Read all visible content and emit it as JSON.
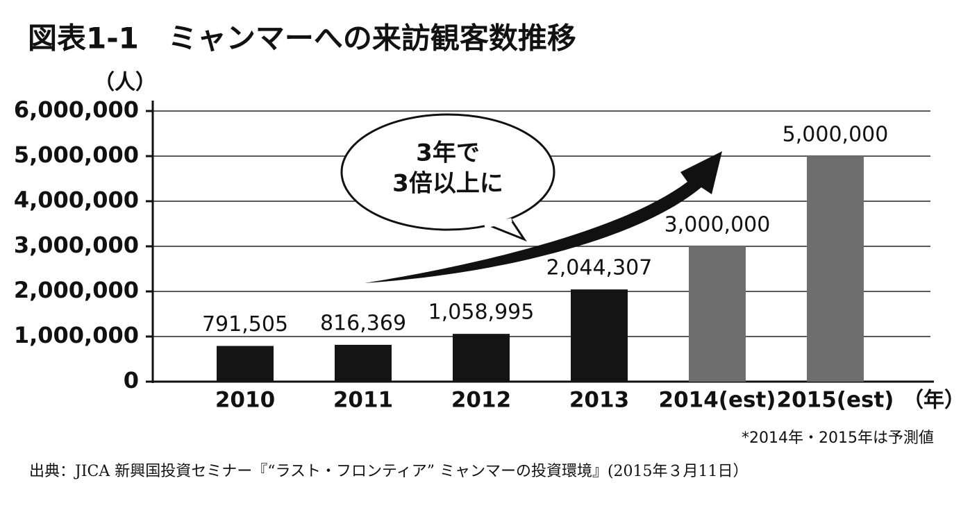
{
  "chart_data": {
    "type": "bar",
    "title": "図表1-1　ミャンマーへの来訪観客数推移",
    "y_unit": "（人）",
    "x_unit": "（年）",
    "categories": [
      "2010",
      "2011",
      "2012",
      "2013",
      "2014(est)",
      "2015(est)"
    ],
    "values": [
      791505,
      816369,
      1058995,
      2044307,
      3000000,
      5000000
    ],
    "value_labels": [
      "791,505",
      "816,369",
      "1,058,995",
      "2,044,307",
      "3,000,000",
      "5,000,000"
    ],
    "colors": [
      "#141414",
      "#141414",
      "#141414",
      "#141414",
      "#6e6e6e",
      "#6e6e6e"
    ],
    "ylim": [
      0,
      6000000
    ],
    "yticks": [
      0,
      {
        "value": 1000000,
        "label": "1,000,000"
      },
      {
        "value": 2000000,
        "label": "2,000,000"
      },
      {
        "value": 3000000,
        "label": "3,000,000"
      },
      {
        "value": 4000000,
        "label": "4,000,000"
      },
      {
        "value": 5000000,
        "label": "5,000,000"
      },
      {
        "value": 6000000,
        "label": "6,000,000"
      }
    ],
    "grid": true,
    "annotation_lines": [
      "3年で",
      "3倍以上に"
    ],
    "note": "*2014年・2015年は予測値",
    "source": "出典：JICA 新興国投資セミナー『“ラスト・フロンティア” ミャンマーの投資環境』(2015年３月11日）"
  }
}
